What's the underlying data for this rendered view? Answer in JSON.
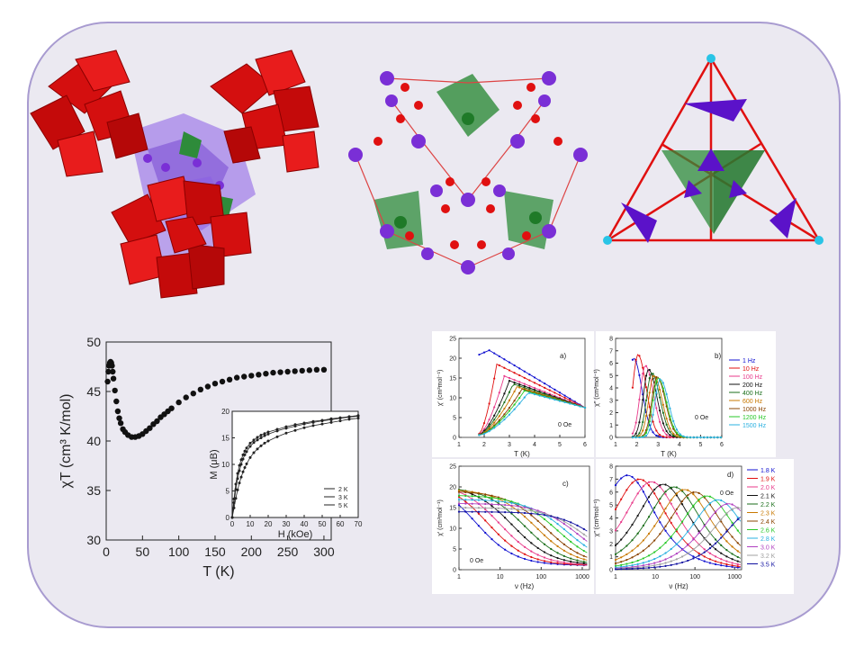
{
  "colors": {
    "frame_border": "#a89bd0",
    "frame_bg": "#ebe9f1",
    "octahedra": "#d40f0f",
    "mn": "#7a2fd6",
    "green": "#2e8b3a",
    "cyan": "#29c4e6"
  },
  "chart_data": [
    {
      "id": "main",
      "type": "scatter",
      "xlabel": "T (K)",
      "ylabel": "χT (cm³ K/mol)",
      "xlim": [
        0,
        310
      ],
      "ylim": [
        30,
        50
      ],
      "xticks": [
        "0",
        "50",
        "100",
        "150",
        "200",
        "250",
        "300"
      ],
      "yticks": [
        "30",
        "35",
        "40",
        "45",
        "50"
      ],
      "x": [
        2,
        3,
        4,
        5,
        6,
        7,
        8,
        9,
        10,
        12,
        14,
        16,
        18,
        20,
        23,
        26,
        30,
        35,
        40,
        45,
        50,
        55,
        60,
        65,
        70,
        75,
        80,
        85,
        90,
        100,
        110,
        120,
        130,
        140,
        150,
        160,
        170,
        180,
        190,
        200,
        210,
        220,
        230,
        240,
        250,
        260,
        270,
        280,
        290,
        300
      ],
      "y": [
        46.0,
        47.0,
        47.6,
        47.9,
        48.0,
        47.9,
        47.6,
        47.0,
        46.3,
        45.1,
        44.0,
        43.0,
        42.3,
        41.8,
        41.2,
        40.9,
        40.6,
        40.4,
        40.4,
        40.5,
        40.7,
        41.0,
        41.3,
        41.7,
        42.0,
        42.4,
        42.7,
        43.0,
        43.3,
        43.9,
        44.4,
        44.8,
        45.2,
        45.5,
        45.8,
        46.0,
        46.2,
        46.4,
        46.5,
        46.6,
        46.7,
        46.8,
        46.9,
        46.95,
        47.0,
        47.05,
        47.1,
        47.15,
        47.2,
        47.2
      ]
    },
    {
      "id": "inset_M_vs_H",
      "type": "line",
      "xlabel": "H (kOe)",
      "ylabel": "M (μB)",
      "xlim": [
        0,
        70
      ],
      "ylim": [
        0,
        20
      ],
      "xticks": [
        "0",
        "10",
        "20",
        "30",
        "40",
        "50",
        "60",
        "70"
      ],
      "yticks": [
        "0",
        "5",
        "10",
        "15",
        "20"
      ],
      "legend": [
        "2 K",
        "3 K",
        "5 K"
      ],
      "legend_position": "bottom-right",
      "x": [
        0,
        1,
        2,
        3,
        4,
        5,
        6,
        7,
        8,
        10,
        12,
        14,
        16,
        18,
        20,
        25,
        30,
        35,
        40,
        45,
        50,
        55,
        60,
        65,
        70
      ],
      "series": [
        {
          "name": "2 K",
          "values": [
            0,
            3.5,
            6.3,
            8.3,
            9.8,
            10.9,
            11.8,
            12.5,
            13.1,
            14.0,
            14.6,
            15.1,
            15.5,
            15.8,
            16.1,
            16.6,
            17.1,
            17.5,
            17.8,
            18.1,
            18.3,
            18.6,
            18.8,
            19.0,
            19.2
          ]
        },
        {
          "name": "3 K",
          "values": [
            0,
            2.8,
            5.3,
            7.3,
            8.8,
            10.0,
            11.0,
            11.8,
            12.4,
            13.4,
            14.1,
            14.6,
            15.0,
            15.4,
            15.7,
            16.3,
            16.8,
            17.2,
            17.6,
            17.9,
            18.2,
            18.4,
            18.7,
            18.9,
            19.1
          ]
        },
        {
          "name": "5 K",
          "values": [
            0,
            1.8,
            3.6,
            5.2,
            6.5,
            7.6,
            8.6,
            9.4,
            10.1,
            11.3,
            12.2,
            12.9,
            13.5,
            14.0,
            14.4,
            15.2,
            15.9,
            16.4,
            16.9,
            17.3,
            17.6,
            17.9,
            18.2,
            18.5,
            18.7
          ]
        }
      ]
    },
    {
      "id": "a",
      "type": "line",
      "label": "a)",
      "annotation": "0 Oe",
      "xlabel": "T (K)",
      "ylabel": "χ′ (cm³mol⁻¹)",
      "xlim": [
        1,
        6
      ],
      "ylim": [
        0,
        25
      ],
      "xticks": [
        "1",
        "2",
        "3",
        "4",
        "5",
        "6"
      ],
      "yticks": [
        "0",
        "5",
        "10",
        "15",
        "20",
        "25"
      ],
      "series": [
        {
          "name": "1 Hz",
          "peak": 2.2,
          "peak_value": 22
        },
        {
          "name": "10 Hz",
          "peak": 2.5,
          "peak_value": 18.5
        },
        {
          "name": "100 Hz",
          "peak": 2.8,
          "peak_value": 15.5
        },
        {
          "name": "200 Hz",
          "peak": 3.0,
          "peak_value": 14.3
        },
        {
          "name": "400 Hz",
          "peak": 3.15,
          "peak_value": 13.5
        },
        {
          "name": "600 Hz",
          "peak": 3.3,
          "peak_value": 12.8
        },
        {
          "name": "1000 Hz",
          "peak": 3.5,
          "peak_value": 12.2
        },
        {
          "name": "1200 Hz",
          "peak": 3.6,
          "peak_value": 11.8
        },
        {
          "name": "1500 Hz",
          "peak": 3.75,
          "peak_value": 11.3
        }
      ]
    },
    {
      "id": "b",
      "type": "line",
      "label": "b)",
      "annotation": "0 Oe",
      "xlabel": "T (K)",
      "ylabel": "χ″ (cm³mol⁻¹)",
      "xlim": [
        1,
        6
      ],
      "ylim": [
        0,
        8
      ],
      "xticks": [
        "1",
        "2",
        "3",
        "4",
        "5",
        "6"
      ],
      "yticks": [
        "0",
        "1",
        "2",
        "3",
        "4",
        "5",
        "6",
        "7",
        "8"
      ],
      "legend": [
        "1 Hz",
        "10 Hz",
        "100 Hz",
        "200 Hz",
        "400 Hz",
        "600 Hz",
        "1000 Hz",
        "1200 Hz",
        "1500 Hz"
      ],
      "series": [
        {
          "name": "1 Hz",
          "peak": 1.85,
          "peak_value": 6.4
        },
        {
          "name": "10 Hz",
          "peak": 2.05,
          "peak_value": 6.7
        },
        {
          "name": "100 Hz",
          "peak": 2.4,
          "peak_value": 5.8
        },
        {
          "name": "200 Hz",
          "peak": 2.55,
          "peak_value": 5.5
        },
        {
          "name": "400 Hz",
          "peak": 2.7,
          "peak_value": 5.2
        },
        {
          "name": "600 Hz",
          "peak": 2.8,
          "peak_value": 5.0
        },
        {
          "name": "1000 Hz",
          "peak": 2.95,
          "peak_value": 4.9
        },
        {
          "name": "1200 Hz",
          "peak": 3.0,
          "peak_value": 4.8
        },
        {
          "name": "1500 Hz",
          "peak": 3.1,
          "peak_value": 4.7
        }
      ]
    },
    {
      "id": "c",
      "type": "line",
      "label": "c)",
      "annotation": "0 Oe",
      "xlabel": "ν (Hz)",
      "ylabel": "χ′ (cm³mol⁻¹)",
      "xscale": "log",
      "xlim": [
        1,
        1500
      ],
      "ylim": [
        0,
        25
      ],
      "xticks": [
        "1",
        "10",
        "100",
        "1000"
      ],
      "yticks": [
        "0",
        "5",
        "10",
        "15",
        "20",
        "25"
      ],
      "series": [
        {
          "name": "1.8 K",
          "low": 22,
          "knee": 2.5
        },
        {
          "name": "1.9 K",
          "low": 21.5,
          "knee": 5
        },
        {
          "name": "2.0 K",
          "low": 21,
          "knee": 10
        },
        {
          "name": "2.1 K",
          "low": 20.5,
          "knee": 20
        },
        {
          "name": "2.2 K",
          "low": 20,
          "knee": 40
        },
        {
          "name": "2.3 K",
          "low": 19.5,
          "knee": 75
        },
        {
          "name": "2.4 K",
          "low": 19,
          "knee": 130
        },
        {
          "name": "2.6 K",
          "low": 18,
          "knee": 250
        },
        {
          "name": "2.8 K",
          "low": 17,
          "knee": 450
        },
        {
          "name": "3.0 K",
          "low": 16,
          "knee": 800
        },
        {
          "name": "3.2 K",
          "low": 15,
          "knee": 1300
        },
        {
          "name": "3.5 K",
          "low": 14,
          "knee": 2500
        }
      ]
    },
    {
      "id": "d",
      "type": "line",
      "label": "d)",
      "annotation": "0 Oe",
      "xlabel": "ν (Hz)",
      "ylabel": "χ″ (cm³mol⁻¹)",
      "xscale": "log",
      "xlim": [
        1,
        1500
      ],
      "ylim": [
        0,
        8
      ],
      "xticks": [
        "1",
        "10",
        "100",
        "1000"
      ],
      "yticks": [
        "0",
        "1",
        "2",
        "3",
        "4",
        "5",
        "6",
        "7",
        "8"
      ],
      "legend": [
        "1.8 K",
        "1.9 K",
        "2.0 K",
        "2.1 K",
        "2.2 K",
        "2.3 K",
        "2.4 K",
        "2.6 K",
        "2.8 K",
        "3.0 K",
        "3.2 K",
        "3.5 K"
      ],
      "series": [
        {
          "name": "1.8 K",
          "peak": 2,
          "peak_value": 7.3
        },
        {
          "name": "1.9 K",
          "peak": 4,
          "peak_value": 7.0
        },
        {
          "name": "2.0 K",
          "peak": 8,
          "peak_value": 6.8
        },
        {
          "name": "2.1 K",
          "peak": 16,
          "peak_value": 6.6
        },
        {
          "name": "2.2 K",
          "peak": 30,
          "peak_value": 6.4
        },
        {
          "name": "2.3 K",
          "peak": 55,
          "peak_value": 6.2
        },
        {
          "name": "2.4 K",
          "peak": 100,
          "peak_value": 6.0
        },
        {
          "name": "2.6 K",
          "peak": 200,
          "peak_value": 5.7
        },
        {
          "name": "2.8 K",
          "peak": 380,
          "peak_value": 5.4
        },
        {
          "name": "3.0 K",
          "peak": 700,
          "peak_value": 5.1
        },
        {
          "name": "3.2 K",
          "peak": 1200,
          "peak_value": 4.8
        },
        {
          "name": "3.5 K",
          "peak": 2500,
          "peak_value": 4.4
        }
      ]
    }
  ]
}
